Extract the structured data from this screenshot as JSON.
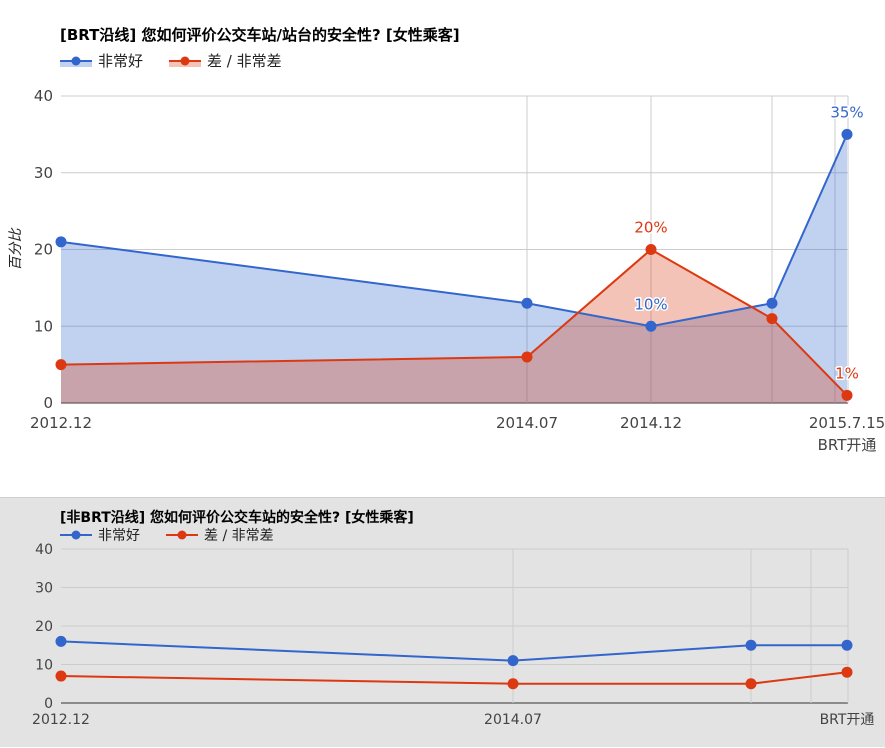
{
  "chart_data": [
    {
      "type": "area",
      "title": "[BRT沿线] 您如何评价公交车站/站台的安全性? [女性乘客]",
      "xlabel": "",
      "ylabel": "百分比",
      "ylim": [
        0,
        40
      ],
      "yticks": [
        "0",
        "10",
        "20",
        "30",
        "40"
      ],
      "categories": [
        "2012.12",
        "2014.07",
        "2014.12",
        "",
        "2015.7.15\nBRT开通"
      ],
      "series": [
        {
          "name": "非常好",
          "color": "#3366cc",
          "values": [
            21,
            13,
            10,
            13,
            35
          ],
          "labels": [
            "",
            "",
            "10%",
            "",
            "35%"
          ]
        },
        {
          "name": "差 / 非常差",
          "color": "#dc3912",
          "values": [
            5,
            6,
            20,
            11,
            1
          ],
          "labels": [
            "",
            "",
            "20%",
            "",
            "1%"
          ]
        }
      ],
      "grid": true,
      "legend": "top-left"
    },
    {
      "type": "line",
      "title": "[非BRT沿线] 您如何评价公交车站的安全性? [女性乘客]",
      "xlabel": "",
      "ylabel": "",
      "ylim": [
        0,
        40
      ],
      "yticks": [
        "0",
        "10",
        "20",
        "30",
        "40"
      ],
      "categories": [
        "2012.12",
        "2014.07",
        "",
        "BRT开通"
      ],
      "series": [
        {
          "name": "非常好",
          "color": "#3366cc",
          "values": [
            16,
            11,
            15,
            15
          ]
        },
        {
          "name": "差 / 非常差",
          "color": "#dc3912",
          "values": [
            7,
            5,
            5,
            8
          ]
        }
      ],
      "grid": true,
      "legend": "top-left"
    }
  ]
}
